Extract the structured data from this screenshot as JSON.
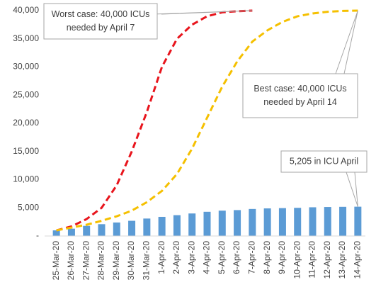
{
  "chart_data": {
    "type": "bar",
    "categories": [
      "25-Mar-20",
      "26-Mar-20",
      "27-Mar-20",
      "28-Mar-20",
      "29-Mar-20",
      "30-Mar-20",
      "31-Mar-20",
      "1-Apr-20",
      "2-Apr-20",
      "3-Apr-20",
      "4-Apr-20",
      "5-Apr-20",
      "6-Apr-20",
      "7-Apr-20",
      "8-Apr-20",
      "9-Apr-20",
      "10-Apr-20",
      "11-Apr-20",
      "12-Apr-20",
      "13-Apr-20",
      "14-Apr-20"
    ],
    "values": [
      1000,
      1300,
      1800,
      2100,
      2400,
      2700,
      3100,
      3400,
      3700,
      4000,
      4300,
      4500,
      4600,
      4800,
      4900,
      4950,
      5000,
      5100,
      5150,
      5180,
      5205
    ],
    "color": "#5b9bd5",
    "series": [
      {
        "color": "#e8141c",
        "values": [
          1000,
          1700,
          3000,
          5000,
          9000,
          15000,
          22000,
          30000,
          35000,
          37500,
          39000,
          39700,
          39900,
          40000,
          null,
          null,
          null,
          null,
          null,
          null,
          null
        ]
      },
      {
        "color": "#f5c000",
        "values": [
          1000,
          1500,
          2000,
          2700,
          3500,
          4500,
          6000,
          8000,
          11000,
          15500,
          21000,
          26500,
          31000,
          34500,
          36500,
          38000,
          39000,
          39500,
          39800,
          39950,
          40000
        ]
      }
    ],
    "ylim": [
      0,
      40000
    ],
    "yticks": [
      {
        "value": 0,
        "label": "-"
      },
      {
        "value": 5000,
        "label": "5,000"
      },
      {
        "value": 10000,
        "label": "10,000"
      },
      {
        "value": 15000,
        "label": "15,000"
      },
      {
        "value": 20000,
        "label": "20,000"
      },
      {
        "value": 25000,
        "label": "25,000"
      },
      {
        "value": 30000,
        "label": "30,000"
      },
      {
        "value": 35000,
        "label": "35,000"
      },
      {
        "value": 40000,
        "label": "40,000"
      }
    ],
    "annotations": [
      {
        "lines": [
          "Worst case: 40,000  ICUs",
          "needed by April 7"
        ]
      },
      {
        "lines": [
          "Best case: 40,000  ICUs",
          "needed by April 14"
        ]
      },
      {
        "lines": [
          "5,205  in ICU April"
        ]
      }
    ]
  }
}
